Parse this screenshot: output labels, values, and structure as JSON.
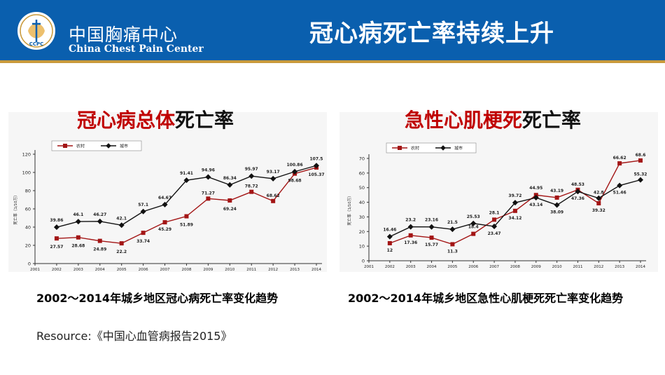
{
  "header": {
    "org_cn": "中国胸痛中心",
    "org_en": "China Chest Pain Center",
    "logo_text": "CCPC",
    "title": "冠心病死亡率持续上升"
  },
  "left_panel": {
    "title_red": "冠心病总体",
    "title_black": "死亡率",
    "caption": "2002～2014年城乡地区冠心病死亡率变化趋势"
  },
  "right_panel": {
    "title_red": "急性心肌梗死",
    "title_black": "死亡率",
    "caption": "2002～2014年城乡地区急性心肌梗死死亡率变化趋势"
  },
  "resource": "Resource:《中国心血管病报告2015》",
  "colors": {
    "rural": "#a31515",
    "urban": "#111111",
    "header": "#0a5fae"
  },
  "chart_data": [
    {
      "type": "line",
      "title": "冠心病总体死亡率",
      "ylabel": "死亡率（1/10万）",
      "xlabel_note": "(年份)",
      "x": [
        "2001",
        "2002",
        "2003",
        "2004",
        "2005",
        "2006",
        "2007",
        "2008",
        "2009",
        "2010",
        "2011",
        "2012",
        "2013",
        "2014"
      ],
      "ylim": [
        0,
        120
      ],
      "yticks": [
        0,
        20,
        40,
        60,
        80,
        100,
        120
      ],
      "legend_position": "top-left",
      "series": [
        {
          "name": "农村",
          "x": [
            "2002",
            "2003",
            "2004",
            "2005",
            "2006",
            "2007",
            "2008",
            "2009",
            "2010",
            "2011",
            "2012",
            "2013",
            "2014"
          ],
          "values": [
            27.57,
            28.68,
            24.89,
            22.2,
            33.74,
            45.29,
            51.89,
            71.27,
            69.24,
            78.72,
            68.62,
            98.68,
            105.37
          ]
        },
        {
          "name": "城市",
          "x": [
            "2002",
            "2003",
            "2004",
            "2005",
            "2006",
            "2007",
            "2008",
            "2009",
            "2010",
            "2011",
            "2012",
            "2013",
            "2014"
          ],
          "values": [
            39.86,
            46.1,
            46.27,
            42.1,
            57.1,
            64.67,
            91.41,
            94.96,
            86.34,
            95.97,
            93.17,
            100.86,
            107.5
          ]
        }
      ]
    },
    {
      "type": "line",
      "title": "急性心肌梗死死亡率",
      "ylabel": "死亡率（1/10万）",
      "x": [
        "2001",
        "2002",
        "2003",
        "2004",
        "2005",
        "2006",
        "2007",
        "2008",
        "2009",
        "2010",
        "2011",
        "2012",
        "2013",
        "2014"
      ],
      "ylim": [
        0,
        70
      ],
      "yticks": [
        0,
        10,
        20,
        30,
        40,
        50,
        60,
        70
      ],
      "legend_position": "top-left",
      "series": [
        {
          "name": "农村",
          "x": [
            "2002",
            "2003",
            "2004",
            "2005",
            "2006",
            "2007",
            "2008",
            "2009",
            "2010",
            "2011",
            "2012",
            "2013",
            "2014"
          ],
          "values": [
            12,
            17.36,
            15.77,
            11.3,
            18.4,
            28.1,
            34.12,
            44.95,
            43.19,
            48.53,
            39.32,
            66.62,
            68.6
          ]
        },
        {
          "name": "城市",
          "x": [
            "2002",
            "2003",
            "2004",
            "2005",
            "2006",
            "2007",
            "2008",
            "2009",
            "2010",
            "2011",
            "2012",
            "2013",
            "2014"
          ],
          "values": [
            16.46,
            23.2,
            23.16,
            21.5,
            25.53,
            23.47,
            39.72,
            43.14,
            38.09,
            47.36,
            42.8,
            51.46,
            55.32
          ]
        }
      ]
    }
  ]
}
